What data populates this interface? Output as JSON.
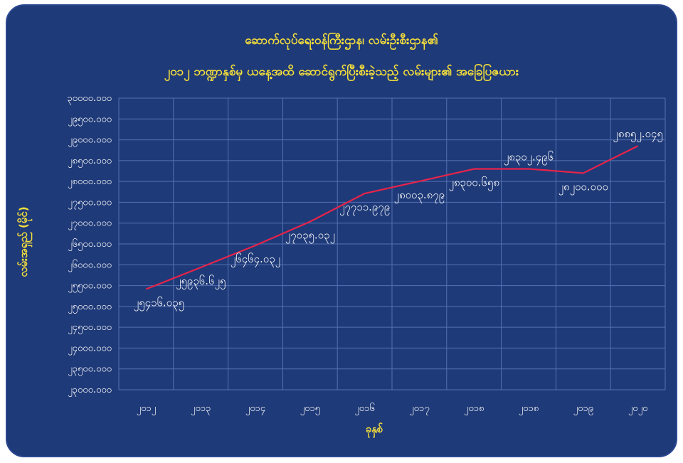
{
  "chart_data": {
    "type": "line",
    "title": "ဆောက်လုပ်ရေးဝန်ကြီးဌာန၊ လမ်းဦးစီးဌာန၏",
    "subtitle": "၂၀၁၂ ဘဏ္ဍာနှစ်မှ ယနေ့အထိ ဆောင်ရွက်ပြီးစီးခဲ့သည့် လမ်းများ၏ အခြေပြဇယား",
    "xlabel": "ခုနှစ်",
    "ylabel": "လမ်းအရှည် (မိုင်)",
    "categories": [
      "၂၀၁၂",
      "၂၀၁၃",
      "၂၀၁၄",
      "၂၀၁၅",
      "၂၀၁၆",
      "၂၀၁၇",
      "၂၀၁၈",
      "၂၀၁၈",
      "၂၀၁၉",
      "၂၀၂၀"
    ],
    "values": [
      25416.035,
      25936.625,
      26464.032,
      27035.032,
      27711.979,
      28003.879,
      28300.658,
      28302.496,
      28200.0,
      28852.045
    ],
    "value_labels": [
      "၂၅၄၁၆.၀၃၅",
      "၂၅၉၃၆.၆၂၅",
      "၂၆၄၆၄.၀၃၂",
      "၂၇၀၃၅.၀၃၂",
      "၂၇၇၁၁.၉၇၉",
      "၂၈၀၀၃.၈၇၉",
      "၂၈၃၀၀.၆၅၈",
      "၂၈၃၀၂.၄၉၆",
      "၂၈၂၀၀.၀၀၀",
      "၂၈၈၅၂.၀၄၅"
    ],
    "ylim": [
      23000,
      30000
    ],
    "yticks": [
      23000,
      23500,
      24000,
      24500,
      25000,
      25500,
      26000,
      26500,
      27000,
      27500,
      28000,
      28500,
      29000,
      29500,
      30000
    ],
    "ytick_labels": [
      "၂၃၀၀၀.၀၀၀",
      "၂၃၅၀၀.၀၀၀",
      "၂၄၀၀၀.၀၀၀",
      "၂၄၅၀၀.၀၀၀",
      "၂၅၀၀၀.၀၀၀",
      "၂၅၅၀၀.၀၀၀",
      "၂၆၀၀၀.၀၀၀",
      "၂၆၅၀၀.၀၀၀",
      "၂၇၀၀၀.၀၀၀",
      "၂၇၅၀၀.၀၀၀",
      "၂၈၀၀၀.၀၀၀",
      "၂၈၅၀၀.၀၀၀",
      "၂၉၀၀၀.၀၀၀",
      "၂၉၅၀၀.၀၀၀",
      "၃၀၀၀၀.၀၀၀"
    ],
    "grid": true,
    "legend": "none",
    "colors": {
      "background": "#1f3a78",
      "grid": "#5472b3",
      "line": "#e8234a",
      "title": "#f7e13a",
      "text": "#ffffff"
    }
  }
}
